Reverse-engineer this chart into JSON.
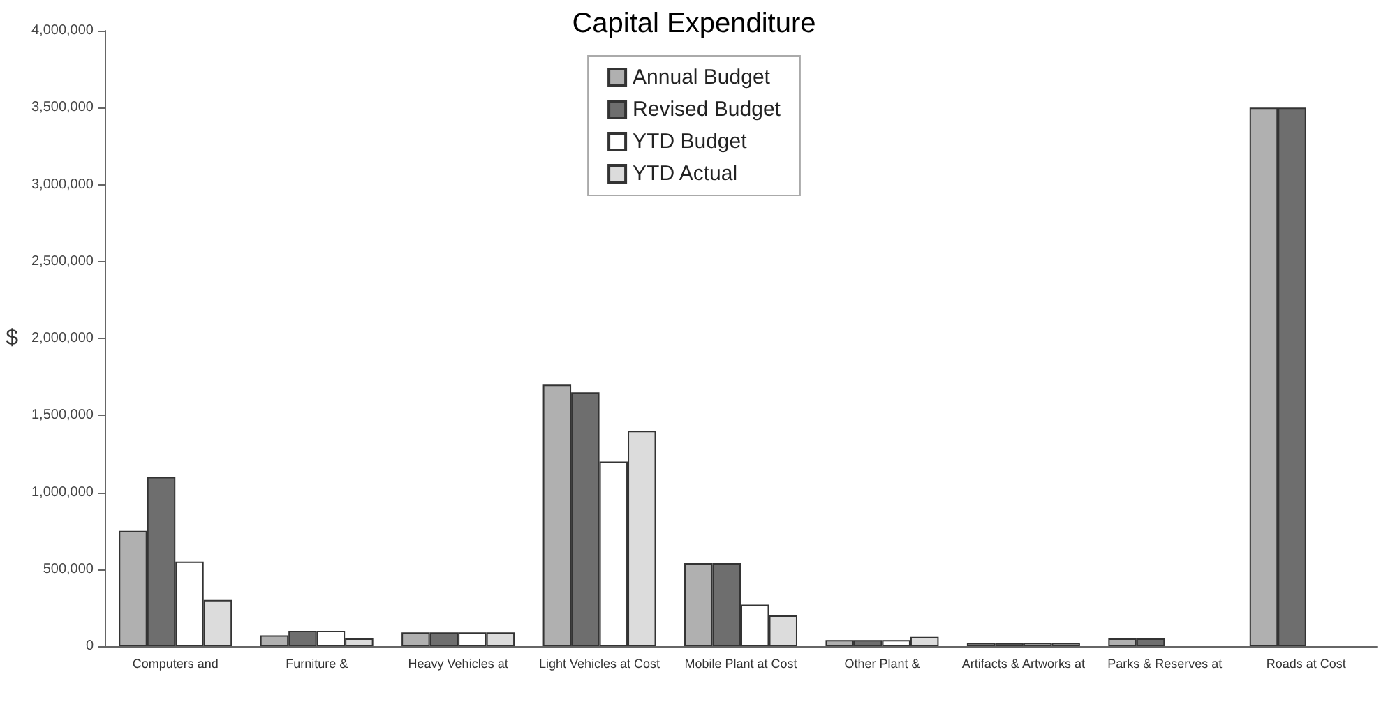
{
  "chart_data": {
    "type": "bar",
    "title": "Capital Expenditure",
    "ylabel": "$",
    "categories": [
      "Computers and",
      "Furniture &",
      "Heavy Vehicles at",
      "Light Vehicles at Cost",
      "Mobile Plant at Cost",
      "Other Plant &",
      "Artifacts & Artworks at",
      "Parks & Reserves at",
      "Roads at Cost"
    ],
    "series": [
      {
        "name": "Annual Budget",
        "color": "#b0b0b0",
        "values": [
          750000,
          70000,
          90000,
          1700000,
          540000,
          40000,
          20000,
          50000,
          3500000
        ]
      },
      {
        "name": "Revised Budget",
        "color": "#6e6e6e",
        "values": [
          1100000,
          100000,
          90000,
          1650000,
          540000,
          40000,
          20000,
          50000,
          3500000
        ]
      },
      {
        "name": "YTD Budget",
        "color": "#ffffff",
        "values": [
          550000,
          100000,
          90000,
          1200000,
          270000,
          40000,
          20000,
          null,
          null
        ]
      },
      {
        "name": "YTD Actual",
        "color": "#dcdcdc",
        "values": [
          300000,
          50000,
          90000,
          1400000,
          200000,
          60000,
          20000,
          null,
          null
        ]
      }
    ],
    "ylim": [
      0,
      4000000
    ],
    "yticks": [
      0,
      {
        "value": 500000,
        "label": "500,000"
      },
      {
        "value": 1000000,
        "label": "1,000,000"
      },
      {
        "value": 1500000,
        "label": "1,500,000"
      },
      {
        "value": 2000000,
        "label": "2,000,000"
      },
      {
        "value": 2500000,
        "label": "2,500,000"
      },
      {
        "value": 3000000,
        "label": "3,000,000"
      },
      {
        "value": 3500000,
        "label": "3,500,000"
      },
      {
        "value": 4000000,
        "label": "4,000,000"
      }
    ],
    "grid": false,
    "legend": "top"
  }
}
